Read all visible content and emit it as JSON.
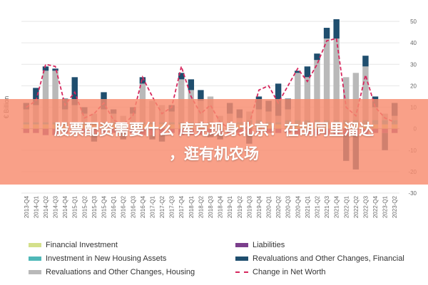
{
  "chart_data": {
    "type": "bar",
    "ylabel": "€ Billion",
    "ylim": [
      -30,
      50
    ],
    "yticks": [
      -30,
      -20,
      -10,
      0,
      10,
      20,
      30,
      40,
      50
    ],
    "categories": [
      "2013-Q4",
      "2014-Q1",
      "2014-Q2",
      "2014-Q3",
      "2014-Q4",
      "2015-Q1",
      "2015-Q2",
      "2015-Q3",
      "2015-Q4",
      "2016-Q1",
      "2016-Q2",
      "2016-Q3",
      "2016-Q4",
      "2017-Q1",
      "2017-Q2",
      "2017-Q3",
      "2017-Q4",
      "2018-Q1",
      "2018-Q2",
      "2018-Q3",
      "2018-Q4",
      "2019-Q1",
      "2019-Q2",
      "2019-Q3",
      "2019-Q4",
      "2020-Q1",
      "2020-Q2",
      "2020-Q3",
      "2020-Q4",
      "2021-Q1",
      "2021-Q2",
      "2021-Q3",
      "2021-Q4",
      "2022-Q1",
      "2022-Q2",
      "2022-Q3",
      "2022-Q4",
      "2023-Q1",
      "2023-Q2"
    ],
    "series": [
      {
        "name": "Financial Investment",
        "color": "#d4e08b",
        "kind": "bar",
        "values": [
          2,
          2,
          2,
          2,
          2,
          2,
          2,
          2,
          2,
          2,
          2,
          2,
          2,
          2,
          2,
          2,
          2,
          2,
          2,
          2,
          2,
          2,
          2,
          2,
          2,
          2,
          2,
          2,
          2,
          2,
          2,
          2,
          2,
          2,
          2,
          2,
          2,
          2,
          2
        ]
      },
      {
        "name": "Investment in New Housing Assets",
        "color": "#4fb8b8",
        "kind": "bar",
        "values": [
          1,
          1,
          1,
          1,
          1,
          1,
          1,
          1,
          1,
          1,
          1,
          1,
          1,
          1,
          1,
          1,
          1,
          1,
          1,
          1,
          1,
          1,
          1,
          2,
          2,
          1,
          1,
          2,
          2,
          2,
          2,
          2,
          2,
          2,
          2,
          2,
          2,
          2,
          2
        ]
      },
      {
        "name": "Revaluations and Other Changes, Housing",
        "color": "#b9b9b9",
        "kind": "bar",
        "values": [
          6,
          8,
          24,
          24,
          6,
          8,
          4,
          4,
          6,
          4,
          3,
          4,
          18,
          10,
          8,
          5,
          20,
          15,
          10,
          12,
          3,
          4,
          2,
          4,
          5,
          5,
          3,
          5,
          22,
          20,
          28,
          38,
          38,
          20,
          22,
          25,
          6,
          3,
          2
        ]
      },
      {
        "name": "Liabilities",
        "color": "#7b3f8c",
        "kind": "bar",
        "values": [
          -2,
          -2,
          -3,
          -3,
          -2,
          -2,
          -2,
          -2,
          -2,
          -2,
          -2,
          -2,
          -3,
          -3,
          -3,
          -2,
          -3,
          -3,
          -3,
          -2,
          -2,
          -2,
          -2,
          -2,
          -2,
          -2,
          -2,
          -2,
          -3,
          -3,
          -3,
          -3,
          -3,
          -3,
          -3,
          -3,
          -2,
          -2,
          -2
        ]
      },
      {
        "name": "Revaluations and Other Changes, Financial",
        "color": "#1f4e6e",
        "kind": "bar",
        "values": [
          3,
          8,
          2,
          1,
          5,
          13,
          3,
          -4,
          8,
          2,
          -3,
          3,
          3,
          -2,
          -3,
          3,
          3,
          5,
          5,
          -2,
          -3,
          5,
          4,
          -5,
          6,
          5,
          15,
          5,
          1,
          5,
          3,
          5,
          9,
          -12,
          -16,
          5,
          5,
          -8,
          6
        ]
      },
      {
        "name": "Change in Net Worth",
        "color": "#d6285e",
        "kind": "line",
        "values": [
          10,
          13,
          30,
          29,
          11,
          17,
          5,
          7,
          12,
          4,
          2,
          6,
          24,
          15,
          7,
          10,
          29,
          15,
          7,
          11,
          3,
          0,
          -3,
          2,
          18,
          20,
          12,
          20,
          28,
          22,
          30,
          41,
          42,
          10,
          6,
          25,
          10,
          5,
          3
        ]
      }
    ],
    "legend_position": "bottom",
    "grid": true
  },
  "legend": {
    "items": [
      {
        "label": "Financial Investment",
        "color": "#d4e08b",
        "style": "bar"
      },
      {
        "label": "Liabilities",
        "color": "#7b3f8c",
        "style": "bar"
      },
      {
        "label": "Investment in New Housing Assets",
        "color": "#4fb8b8",
        "style": "bar"
      },
      {
        "label": "Revaluations and Other Changes, Financial",
        "color": "#1f4e6e",
        "style": "bar"
      },
      {
        "label": "Revaluations and Other Changes, Housing",
        "color": "#b9b9b9",
        "style": "bar"
      },
      {
        "label": "Change in Net Worth",
        "color": "#d6285e",
        "style": "dash"
      }
    ]
  },
  "banner": {
    "line1": "股票配资需要什么 库克现身北京！在胡同里溜达",
    "line2": "，逛有机农场",
    "color": "#f88b6e"
  }
}
